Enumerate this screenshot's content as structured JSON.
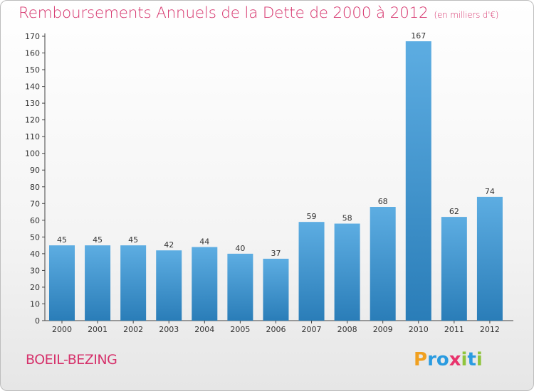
{
  "header": {
    "title": "Remboursements Annuels de la Dette de 2000 à 2012",
    "unit": "(en milliers d'€)"
  },
  "commune": "BOEIL-BEZING",
  "logo": {
    "text": "Proxiti"
  },
  "colors": {
    "bar_top": "#5dade2",
    "bar_bottom": "#2a7db8",
    "title": "#d6336c"
  },
  "chart_data": {
    "type": "bar",
    "title": "Remboursements Annuels de la Dette de 2000 à 2012",
    "categories": [
      "2000",
      "2001",
      "2002",
      "2003",
      "2004",
      "2005",
      "2006",
      "2007",
      "2008",
      "2009",
      "2010",
      "2011",
      "2012"
    ],
    "values": [
      45,
      45,
      45,
      42,
      44,
      40,
      37,
      59,
      58,
      68,
      167,
      62,
      74
    ],
    "ylim": [
      0,
      170
    ],
    "yticks": [
      0,
      10,
      20,
      30,
      40,
      50,
      60,
      70,
      80,
      90,
      100,
      110,
      120,
      130,
      140,
      150,
      160,
      170
    ],
    "grid": false,
    "data_labels": true
  }
}
